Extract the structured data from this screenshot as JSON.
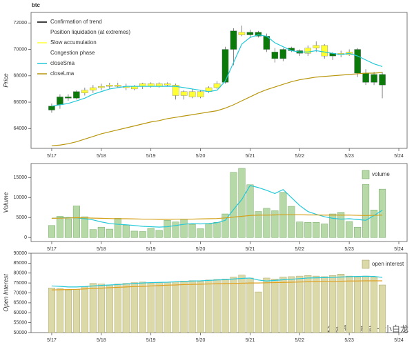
{
  "chart_data": [
    {
      "type": "candlestick",
      "title": "btc",
      "ylabel": "Price",
      "x": [
        0,
        1,
        2,
        3,
        4,
        5,
        6,
        7,
        8,
        9,
        10,
        11,
        12,
        13,
        14,
        15,
        16,
        17,
        18,
        19,
        20,
        21,
        22,
        23,
        24,
        25,
        26,
        27,
        28,
        29,
        30,
        31,
        32,
        33,
        34,
        35,
        36,
        37,
        38,
        39,
        40
      ],
      "open": [
        65700,
        65800,
        66300,
        66300,
        66700,
        66900,
        67100,
        67200,
        67300,
        67200,
        67000,
        67200,
        67400,
        67200,
        67400,
        67300,
        66500,
        66800,
        66400,
        66800,
        67100,
        67500,
        70000,
        71300,
        71100,
        71300,
        71000,
        69800,
        69300,
        70100,
        69900,
        69700,
        70100,
        70300,
        69500,
        69700,
        69600,
        70000,
        68200,
        67500,
        68100
      ],
      "high": [
        65900,
        66600,
        66600,
        66900,
        67100,
        67300,
        67400,
        67500,
        67600,
        67400,
        67300,
        67500,
        67500,
        67500,
        67500,
        67400,
        66900,
        67000,
        66900,
        67200,
        67600,
        70200,
        71600,
        71800,
        71500,
        71400,
        71200,
        70100,
        70100,
        70200,
        70000,
        70300,
        70600,
        70400,
        69800,
        69900,
        70000,
        70100,
        68500,
        68300,
        68300
      ],
      "low": [
        65200,
        65500,
        66100,
        66200,
        66500,
        66700,
        66900,
        67000,
        67100,
        66900,
        66900,
        67000,
        67100,
        67100,
        67200,
        66200,
        66200,
        66300,
        66300,
        66700,
        67000,
        67400,
        68800,
        71000,
        70900,
        70900,
        69800,
        69000,
        69100,
        69800,
        69500,
        69500,
        69800,
        69300,
        69200,
        69400,
        69500,
        67900,
        67300,
        67300,
        66300
      ],
      "close": [
        65400,
        66400,
        66400,
        66800,
        66900,
        67100,
        67200,
        67300,
        67200,
        67100,
        67200,
        67400,
        67200,
        67400,
        67300,
        66500,
        66800,
        66400,
        66800,
        67100,
        67400,
        70000,
        71400,
        71100,
        71300,
        71000,
        70000,
        69300,
        70000,
        69900,
        69700,
        70100,
        70300,
        69500,
        69700,
        69600,
        69800,
        68200,
        67500,
        68100,
        67300
      ],
      "colors": [
        "#0b7a0b",
        "#0b7a0b",
        "#0b7a0b",
        "#0b7a0b",
        "#ffff33",
        "#ffff33",
        "#ffff33",
        "#ffff33",
        "#ffff33",
        "#ffff33",
        "#ffff33",
        "#ffff33",
        "#ffff33",
        "#ffff33",
        "#ffff33",
        "#ffff33",
        "#ffff33",
        "#ffff33",
        "#ffff33",
        "#ffff33",
        "#ffff33",
        "#0b7a0b",
        "#0b7a0b",
        "#ffff33",
        "#0b7a0b",
        "#0b7a0b",
        "#0b7a0b",
        "#0b7a0b",
        "#0b7a0b",
        "#0b7a0b",
        "#0b7a0b",
        "#ffff33",
        "#ffff33",
        "#ffff33",
        "#0b7a0b",
        "#ffff33",
        "#ffff33",
        "#0b7a0b",
        "#0b7a0b",
        "#0b7a0b",
        "#0b7a0b"
      ],
      "legend": [
        {
          "name": "Confirmation of trend",
          "color": "#000000"
        },
        {
          "name": "Position liquidation (at extremes)"
        },
        {
          "name": "Slow accumulation",
          "color": "#ffff33"
        },
        {
          "name": "Congestion phase"
        }
      ],
      "series": [
        {
          "name": "closeSma",
          "color": "#22c8d8",
          "values": [
            65700,
            65800,
            65900,
            66100,
            66300,
            66600,
            66800,
            67000,
            67100,
            67200,
            67200,
            67200,
            67200,
            67200,
            67200,
            67200,
            67100,
            67000,
            66900,
            66800,
            66900,
            67600,
            69000,
            70400,
            70900,
            71100,
            71000,
            70500,
            70200,
            69900,
            69800,
            69800,
            69900,
            69800,
            69700,
            69600,
            69700,
            69500,
            69200,
            68900,
            68700
          ]
        },
        {
          "name": "closeLma",
          "color": "#b8960c",
          "values": [
            62700,
            62750,
            62850,
            63000,
            63200,
            63400,
            63600,
            63750,
            63900,
            64050,
            64200,
            64350,
            64500,
            64600,
            64750,
            64850,
            64950,
            65050,
            65150,
            65250,
            65350,
            65550,
            65800,
            66100,
            66400,
            66700,
            66950,
            67150,
            67350,
            67550,
            67700,
            67800,
            67900,
            67950,
            68000,
            68050,
            68100,
            68150,
            68200,
            68200,
            68250
          ]
        }
      ],
      "xlim": [
        -2.5,
        43
      ],
      "xticks": [
        {
          "value": 0,
          "label": "5/17"
        },
        {
          "value": 6,
          "label": "5/18"
        },
        {
          "value": 12,
          "label": "5/19"
        },
        {
          "value": 18,
          "label": "5/20"
        },
        {
          "value": 24,
          "label": "5/21"
        },
        {
          "value": 30,
          "label": "5/22"
        },
        {
          "value": 36,
          "label": "5/23"
        },
        {
          "value": 42,
          "label": "5/24"
        }
      ],
      "ylim": [
        62500,
        72800
      ],
      "yticks": [
        64000,
        66000,
        68000,
        70000,
        72000
      ]
    },
    {
      "type": "bar",
      "ylabel": "Volume",
      "x": [
        0,
        1,
        2,
        3,
        4,
        5,
        6,
        7,
        8,
        9,
        10,
        11,
        12,
        13,
        14,
        15,
        16,
        17,
        18,
        19,
        20,
        21,
        22,
        23,
        24,
        25,
        26,
        27,
        28,
        29,
        30,
        31,
        32,
        33,
        34,
        35,
        36,
        37,
        38,
        39,
        40
      ],
      "series": [
        {
          "name": "volume",
          "color": "#b7d9a8",
          "edge": "#5a9a4a",
          "values": [
            3000,
            5300,
            4700,
            7900,
            5200,
            2000,
            2600,
            2100,
            4800,
            3100,
            1600,
            1500,
            2300,
            1800,
            4300,
            3900,
            4600,
            3300,
            2200,
            3400,
            3800,
            5900,
            16300,
            17300,
            13200,
            6500,
            7300,
            6700,
            11300,
            7800,
            3900,
            3800,
            3800,
            3400,
            5900,
            6300,
            4000,
            2600,
            13300,
            6900,
            12100
          ]
        }
      ],
      "lines": [
        {
          "color": "#22c8d8",
          "values": [
            4800,
            4900,
            5000,
            4900,
            4700,
            4400,
            3900,
            3500,
            3300,
            3200,
            3000,
            2800,
            2700,
            2600,
            2700,
            3000,
            3300,
            3500,
            3400,
            3500,
            3700,
            4300,
            7000,
            9500,
            13000,
            12500,
            11800,
            11000,
            12000,
            10000,
            8000,
            6500,
            5800,
            5200,
            4800,
            4600,
            4700,
            4500,
            4300,
            5500,
            6800
          ]
        },
        {
          "color": "#d4a017",
          "values": [
            4800,
            4850,
            4900,
            4950,
            4900,
            4850,
            4800,
            4750,
            4700,
            4700,
            4650,
            4600,
            4600,
            4550,
            4550,
            4600,
            4600,
            4600,
            4650,
            4700,
            4750,
            4900,
            5100,
            5300,
            5500,
            5600,
            5600,
            5650,
            5700,
            5700,
            5700,
            5650,
            5650,
            5600,
            5600,
            5600,
            5600,
            5550,
            5500,
            5550,
            5600
          ]
        }
      ],
      "xlim": [
        -2.5,
        43
      ],
      "xticks": [
        {
          "value": 0,
          "label": "5/17"
        },
        {
          "value": 6,
          "label": "5/18"
        },
        {
          "value": 12,
          "label": "5/19"
        },
        {
          "value": 18,
          "label": "5/20"
        },
        {
          "value": 24,
          "label": "5/21"
        },
        {
          "value": 30,
          "label": "5/22"
        },
        {
          "value": 36,
          "label": "5/23"
        },
        {
          "value": 42,
          "label": "5/24"
        }
      ],
      "ylim": [
        -1000,
        18500
      ],
      "yticks": [
        0,
        5000,
        10000,
        15000
      ]
    },
    {
      "type": "bar",
      "ylabel": "Open Interest",
      "x": [
        0,
        1,
        2,
        3,
        4,
        5,
        6,
        7,
        8,
        9,
        10,
        11,
        12,
        13,
        14,
        15,
        16,
        17,
        18,
        19,
        20,
        21,
        22,
        23,
        24,
        25,
        26,
        27,
        28,
        29,
        30,
        31,
        32,
        33,
        34,
        35,
        36,
        37,
        38,
        39,
        40
      ],
      "series": [
        {
          "name": "open interest",
          "color": "#dcd9a8",
          "edge": "#9a9650",
          "values": [
            72500,
            72200,
            71500,
            71800,
            73000,
            74800,
            74500,
            74000,
            74500,
            74800,
            75200,
            75500,
            75000,
            75200,
            75300,
            75500,
            76000,
            76200,
            75800,
            76500,
            76800,
            77000,
            78000,
            79000,
            77500,
            70500,
            77500,
            77000,
            78000,
            78200,
            78500,
            78800,
            78500,
            78200,
            78800,
            79500,
            78500,
            78000,
            78500,
            78000,
            74000
          ]
        }
      ],
      "lines": [
        {
          "color": "#22c8d8",
          "values": [
            73500,
            73300,
            73000,
            73000,
            73200,
            73500,
            73800,
            74000,
            74200,
            74500,
            74800,
            75000,
            75200,
            75300,
            75400,
            75600,
            75800,
            76000,
            76100,
            76300,
            76500,
            76700,
            77000,
            77300,
            77500,
            76500,
            76000,
            76300,
            76600,
            76900,
            77200,
            77500,
            77600,
            77700,
            77800,
            78000,
            78200,
            78300,
            78400,
            78300,
            77800
          ]
        },
        {
          "color": "#e0a020",
          "values": [
            71500,
            71600,
            71700,
            71800,
            72000,
            72200,
            72400,
            72600,
            72800,
            73000,
            73200,
            73300,
            73500,
            73700,
            73900,
            74000,
            74200,
            74300,
            74400,
            74500,
            74600,
            74700,
            74800,
            74900,
            75000,
            75000,
            75100,
            75200,
            75300,
            75400,
            75500,
            75600,
            75700,
            75800,
            75800,
            75900,
            76000,
            76000,
            76100,
            76100,
            76100
          ]
        }
      ],
      "xlim": [
        -2.5,
        43
      ],
      "xticks": [
        {
          "value": 0,
          "label": "5/17"
        },
        {
          "value": 6,
          "label": "5/18"
        },
        {
          "value": 12,
          "label": "5/19"
        },
        {
          "value": 18,
          "label": "5/20"
        },
        {
          "value": 24,
          "label": "5/21"
        },
        {
          "value": 30,
          "label": "5/22"
        },
        {
          "value": 36,
          "label": "5/23"
        },
        {
          "value": 42,
          "label": "5/24"
        }
      ],
      "ylim": [
        50000,
        90000
      ],
      "yticks": [
        50000,
        55000,
        60000,
        65000,
        70000,
        75000,
        80000,
        85000,
        90000
      ]
    }
  ],
  "watermark": "公众号 · 方向一小白龙"
}
